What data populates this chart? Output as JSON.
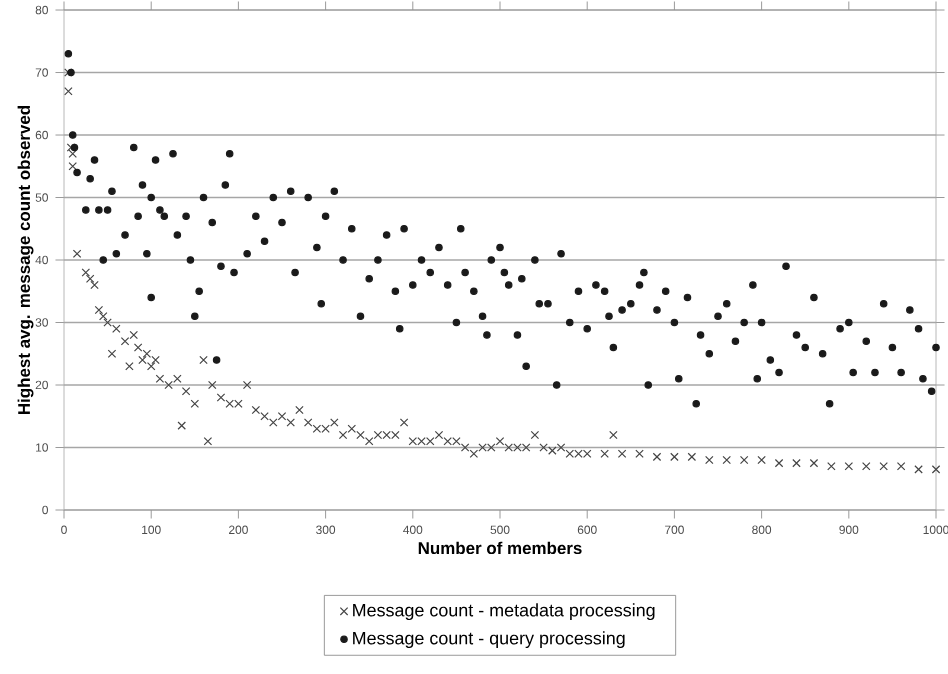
{
  "chart_data": {
    "type": "scatter",
    "xlabel": "Number of members",
    "ylabel": "Highest avg. message count observed",
    "xlim": [
      0,
      1000
    ],
    "ylim": [
      0,
      80
    ],
    "xticks": [
      0,
      100,
      200,
      300,
      400,
      500,
      600,
      700,
      800,
      900,
      1000
    ],
    "yticks": [
      0,
      10,
      20,
      30,
      40,
      50,
      60,
      70,
      80
    ],
    "grid": "y",
    "legend": "bottom",
    "series": [
      {
        "name": "Message count - metadata processing",
        "color": "#444444",
        "marker": "cross",
        "x": [
          5,
          5,
          8,
          10,
          10,
          15,
          25,
          30,
          35,
          40,
          45,
          50,
          55,
          60,
          70,
          75,
          80,
          85,
          90,
          95,
          100,
          105,
          110,
          120,
          130,
          135,
          140,
          150,
          160,
          165,
          170,
          180,
          190,
          200,
          210,
          220,
          230,
          240,
          250,
          260,
          270,
          280,
          290,
          300,
          310,
          320,
          330,
          340,
          350,
          360,
          370,
          380,
          390,
          400,
          410,
          420,
          430,
          440,
          450,
          460,
          470,
          480,
          490,
          500,
          510,
          520,
          530,
          540,
          550,
          560,
          570,
          580,
          590,
          600,
          620,
          630,
          640,
          660,
          680,
          700,
          720,
          740,
          760,
          780,
          800,
          820,
          840,
          860,
          880,
          900,
          920,
          940,
          960,
          980,
          1000
        ],
        "values": [
          67,
          70,
          58,
          55,
          57,
          41,
          38,
          37,
          36,
          32,
          31,
          30,
          25,
          29,
          27,
          23,
          28,
          26,
          24,
          25,
          23,
          24,
          21,
          20,
          21,
          13.5,
          19,
          17,
          24,
          11,
          20,
          18,
          17,
          17,
          20,
          16,
          15,
          14,
          15,
          14,
          16,
          14,
          13,
          13,
          14,
          12,
          13,
          12,
          11,
          12,
          12,
          12,
          14,
          11,
          11,
          11,
          12,
          11,
          11,
          10,
          9,
          10,
          10,
          11,
          10,
          10,
          10,
          12,
          10,
          9.5,
          10,
          9,
          9,
          9,
          9,
          12,
          9,
          9,
          8.5,
          8.5,
          8.5,
          8,
          8,
          8,
          8,
          7.5,
          7.5,
          7.5,
          7,
          7,
          7,
          7,
          7,
          6.5,
          6.5
        ]
      },
      {
        "name": "Message count - query processing",
        "color": "#1a1a1a",
        "marker": "circle",
        "x": [
          5,
          8,
          10,
          12,
          15,
          25,
          30,
          35,
          40,
          45,
          50,
          55,
          60,
          70,
          80,
          85,
          90,
          95,
          100,
          100,
          105,
          110,
          115,
          125,
          130,
          140,
          145,
          150,
          155,
          160,
          170,
          175,
          180,
          185,
          190,
          195,
          210,
          220,
          230,
          240,
          250,
          260,
          265,
          280,
          290,
          295,
          300,
          310,
          320,
          330,
          340,
          350,
          360,
          370,
          380,
          385,
          390,
          400,
          410,
          420,
          430,
          440,
          450,
          455,
          460,
          470,
          480,
          485,
          490,
          500,
          505,
          510,
          520,
          525,
          530,
          540,
          545,
          555,
          565,
          570,
          580,
          590,
          600,
          610,
          620,
          625,
          630,
          640,
          650,
          660,
          665,
          670,
          680,
          690,
          700,
          705,
          715,
          725,
          730,
          740,
          750,
          760,
          770,
          780,
          790,
          795,
          800,
          810,
          820,
          828,
          840,
          850,
          860,
          870,
          878,
          890,
          900,
          905,
          920,
          930,
          940,
          950,
          960,
          970,
          980,
          985,
          995,
          1000
        ],
        "values": [
          73,
          70,
          60,
          58,
          54,
          48,
          53,
          56,
          48,
          40,
          48,
          51,
          41,
          44,
          58,
          47,
          52,
          41,
          34,
          50,
          56,
          48,
          47,
          57,
          44,
          47,
          40,
          31,
          35,
          50,
          46,
          24,
          39,
          52,
          57,
          38,
          41,
          47,
          43,
          50,
          46,
          51,
          38,
          50,
          42,
          33,
          47,
          51,
          40,
          45,
          31,
          37,
          40,
          44,
          35,
          29,
          45,
          36,
          40,
          38,
          42,
          36,
          30,
          45,
          38,
          35,
          31,
          28,
          40,
          42,
          38,
          36,
          28,
          37,
          23,
          40,
          33,
          33,
          20,
          41,
          30,
          35,
          29,
          36,
          35,
          31,
          26,
          32,
          33,
          36,
          38,
          20,
          32,
          35,
          30,
          21,
          34,
          17,
          28,
          25,
          31,
          33,
          27,
          30,
          36,
          21,
          30,
          24,
          22,
          39,
          28,
          26,
          34,
          25,
          17,
          29,
          30,
          22,
          27,
          22,
          33,
          26,
          22,
          32,
          29,
          21,
          19,
          26
        ]
      }
    ]
  }
}
